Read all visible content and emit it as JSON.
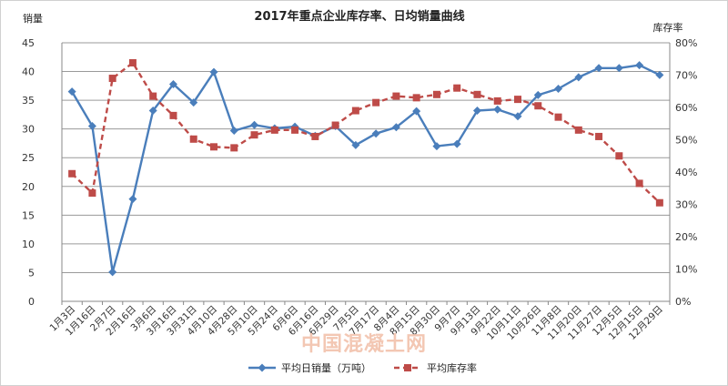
{
  "chart_data": {
    "type": "line",
    "title": "2017年重点企业库存率、日均销量曲线",
    "ylabel": "销量",
    "y2label": "库存率",
    "ylim": [
      0,
      45
    ],
    "y_ticks": [
      "0",
      "5",
      "10",
      "15",
      "20",
      "25",
      "30",
      "35",
      "40",
      "45"
    ],
    "y2lim": [
      0,
      80
    ],
    "y2_ticks": [
      "0%",
      "10%",
      "20%",
      "30%",
      "40%",
      "50%",
      "60%",
      "70%",
      "80%"
    ],
    "grid": true,
    "legend_position": "bottom",
    "categories": [
      "1月3日",
      "1月16日",
      "2月7日",
      "2月16日",
      "3月6日",
      "3月16日",
      "3月31日",
      "4月10日",
      "4月28日",
      "5月10日",
      "5月24日",
      "6月6日",
      "6月16日",
      "6月29日",
      "7月5日",
      "7月17日",
      "8月4日",
      "8月15日",
      "8月30日",
      "9月7日",
      "9月13日",
      "9月22日",
      "10月11日",
      "10月26日",
      "11月8日",
      "11月20日",
      "11月27日",
      "12月5日",
      "12月15日",
      "12月29日"
    ],
    "series": [
      {
        "name": "平均日销量（万吨）",
        "axis": "left",
        "color": "#4a7ebb",
        "marker": "diamond",
        "line_style": "solid",
        "values": [
          36.5,
          30.5,
          5.1,
          17.8,
          33.2,
          37.8,
          34.6,
          39.9,
          29.7,
          30.7,
          30.1,
          30.4,
          28.8,
          30.5,
          27.2,
          29.2,
          30.3,
          33.1,
          27.0,
          27.4,
          33.2,
          33.4,
          32.2,
          35.9,
          37.0,
          39.0,
          40.6,
          40.6,
          41.1,
          39.4
        ]
      },
      {
        "name": "平均库存率",
        "axis": "right",
        "color": "#be4b48",
        "marker": "square",
        "line_style": "dashed",
        "values": [
          39.5,
          33.5,
          69.0,
          73.8,
          63.5,
          57.5,
          50.2,
          47.8,
          47.5,
          51.5,
          53.0,
          53.0,
          51.0,
          54.5,
          59.0,
          61.5,
          63.5,
          63.0,
          64.0,
          66.0,
          64.0,
          62.0,
          62.5,
          60.5,
          57.0,
          53.0,
          51.0,
          45.0,
          36.5,
          30.5
        ]
      }
    ],
    "watermark": "中国混凝土网"
  }
}
